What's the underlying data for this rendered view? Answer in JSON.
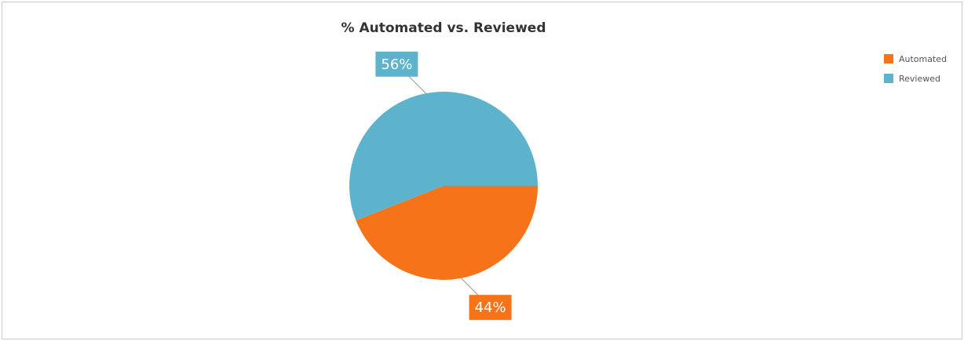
{
  "chart_data": {
    "type": "pie",
    "title": "% Automated vs. Reviewed",
    "categories": [
      "Automated",
      "Reviewed"
    ],
    "values": [
      44,
      56
    ],
    "value_labels": [
      "44%",
      "56%"
    ],
    "colors": [
      "#f7731a",
      "#5db3cc"
    ],
    "legend": "top-right"
  }
}
